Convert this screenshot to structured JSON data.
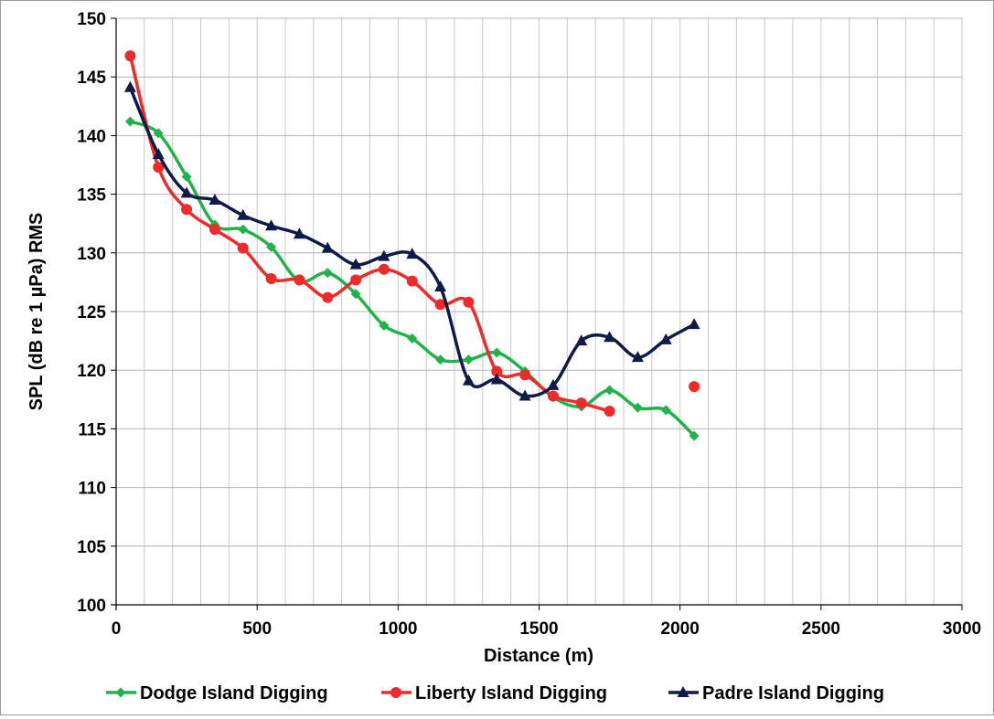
{
  "chart_data": {
    "type": "line",
    "title": "",
    "xlabel": "Distance (m)",
    "ylabel": "SPL (dB re 1 µPa) RMS",
    "xlim": [
      0,
      3000
    ],
    "ylim": [
      100,
      150
    ],
    "xticks": [
      0,
      500,
      1000,
      1500,
      2000,
      2500,
      3000
    ],
    "yticks": [
      100,
      105,
      110,
      115,
      120,
      125,
      130,
      135,
      140,
      145,
      150
    ],
    "x_minor_step": 100,
    "grid": true,
    "legend_position": "bottom",
    "series": [
      {
        "name": "Dodge Island Digging",
        "color": "#22b24c",
        "marker": "diamond",
        "x": [
          50,
          150,
          250,
          350,
          450,
          550,
          650,
          750,
          850,
          950,
          1050,
          1150,
          1250,
          1350,
          1450,
          1550,
          1650,
          1750,
          1850,
          1950,
          2050
        ],
        "values": [
          141.2,
          140.2,
          136.5,
          132.4,
          132.0,
          130.5,
          127.6,
          128.3,
          126.5,
          123.8,
          122.7,
          120.9,
          120.9,
          121.5,
          119.9,
          117.7,
          116.9,
          118.3,
          116.8,
          116.6,
          114.4
        ]
      },
      {
        "name": "Liberty Island Digging",
        "color": "#ee2a2a",
        "marker": "circle",
        "x": [
          50,
          150,
          250,
          350,
          450,
          550,
          650,
          750,
          850,
          950,
          1050,
          1150,
          1250,
          1350,
          1450,
          1550,
          1650,
          1750,
          2050
        ],
        "values": [
          146.8,
          137.3,
          133.7,
          132.0,
          130.4,
          127.8,
          127.7,
          126.2,
          127.7,
          128.6,
          127.6,
          125.6,
          125.8,
          119.9,
          119.6,
          117.8,
          117.2,
          116.5,
          118.6
        ],
        "break_before_index": 18
      },
      {
        "name": "Padre Island Digging",
        "color": "#0f1a48",
        "marker": "triangle",
        "x": [
          50,
          150,
          250,
          350,
          450,
          550,
          650,
          750,
          850,
          950,
          1050,
          1150,
          1250,
          1350,
          1450,
          1550,
          1650,
          1750,
          1850,
          1950,
          2050
        ],
        "values": [
          144.1,
          138.4,
          135.1,
          134.5,
          133.2,
          132.3,
          131.6,
          130.4,
          129.0,
          129.7,
          129.9,
          127.1,
          119.1,
          119.2,
          117.8,
          118.7,
          122.5,
          122.8,
          121.1,
          122.6,
          123.9
        ]
      }
    ]
  }
}
